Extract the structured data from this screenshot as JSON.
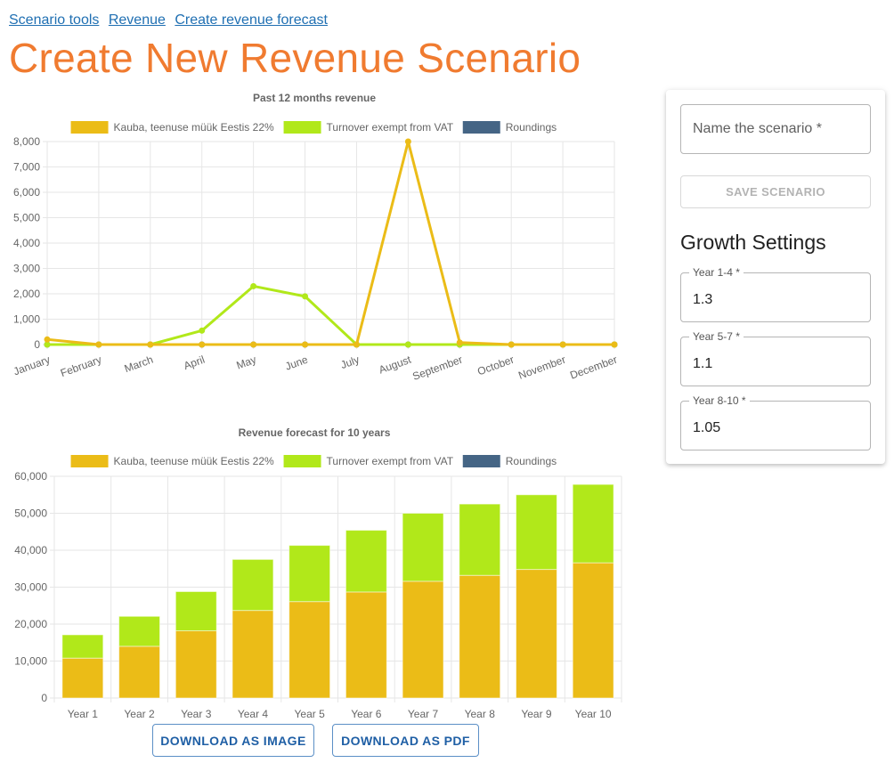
{
  "breadcrumb": [
    "Scenario tools",
    "Revenue",
    "Create revenue forecast"
  ],
  "page_title": "Create New Revenue Scenario",
  "download_image_label": "DOWNLOAD AS IMAGE",
  "download_pdf_label": "DOWNLOAD AS PDF",
  "panel": {
    "name_placeholder": "Name the scenario *",
    "name_value": "",
    "save_label": "SAVE SCENARIO",
    "growth_title": "Growth Settings",
    "fields": [
      {
        "label": "Year 1-4 *",
        "value": "1.3"
      },
      {
        "label": "Year 5-7 *",
        "value": "1.1"
      },
      {
        "label": "Year 8-10 *",
        "value": "1.05"
      }
    ]
  },
  "chart_data": [
    {
      "type": "line",
      "title": "Past 12 months revenue",
      "categories": [
        "January",
        "February",
        "March",
        "April",
        "May",
        "June",
        "July",
        "August",
        "September",
        "October",
        "November",
        "December"
      ],
      "ylim": [
        0,
        8000
      ],
      "yticks": [
        0,
        1000,
        2000,
        3000,
        4000,
        5000,
        6000,
        7000,
        8000
      ],
      "grid": true,
      "legend_position": "top",
      "series": [
        {
          "name": "Kauba, teenuse müük Eestis 22%",
          "color": "#ebbc17",
          "values": [
            200,
            0,
            0,
            0,
            0,
            0,
            0,
            8000,
            80,
            0,
            0,
            0
          ]
        },
        {
          "name": "Turnover exempt from VAT",
          "color": "#b1e81a",
          "values": [
            0,
            0,
            0,
            550,
            2300,
            1900,
            0,
            0,
            0,
            0,
            0,
            0
          ]
        },
        {
          "name": "Roundings",
          "color": "#456585",
          "values": [
            0,
            0,
            0,
            0,
            0,
            0,
            0,
            0,
            0,
            0,
            0,
            0
          ]
        }
      ]
    },
    {
      "type": "bar",
      "stacked": true,
      "title": "Revenue forecast for 10 years",
      "categories": [
        "Year 1",
        "Year 2",
        "Year 3",
        "Year 4",
        "Year 5",
        "Year 6",
        "Year 7",
        "Year 8",
        "Year 9",
        "Year 10"
      ],
      "ylim": [
        0,
        60000
      ],
      "yticks": [
        0,
        10000,
        20000,
        30000,
        40000,
        50000,
        60000
      ],
      "grid": true,
      "legend_position": "top",
      "series": [
        {
          "name": "Kauba, teenuse müük Eestis 22%",
          "color": "#ebbc17",
          "values": [
            10800,
            14000,
            18200,
            23700,
            26100,
            28700,
            31600,
            33200,
            34800,
            36600
          ]
        },
        {
          "name": "Turnover exempt from VAT",
          "color": "#b1e81a",
          "values": [
            6300,
            8100,
            10600,
            13800,
            15200,
            16700,
            18400,
            19300,
            20200,
            21200
          ]
        },
        {
          "name": "Roundings",
          "color": "#456585",
          "values": [
            0,
            0,
            0,
            0,
            0,
            0,
            0,
            0,
            0,
            0
          ]
        }
      ]
    }
  ]
}
